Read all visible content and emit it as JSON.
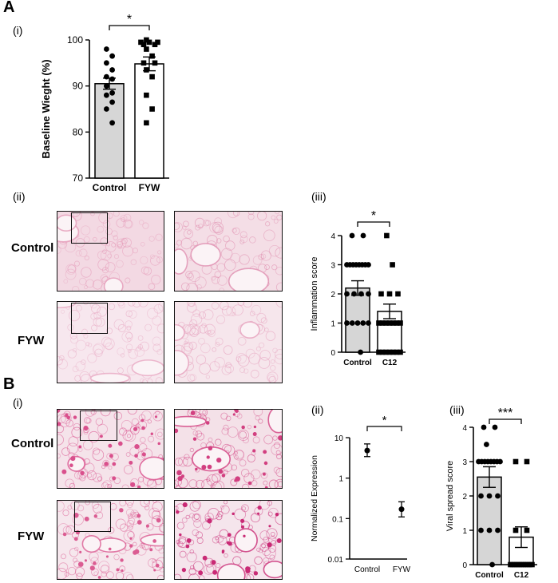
{
  "panels": {
    "A": {
      "letter": "A",
      "i_label": "(i)",
      "ii_label": "(ii)",
      "iii_label": "(iii)",
      "row_labels": [
        "Control",
        "FYW"
      ]
    },
    "B": {
      "letter": "B",
      "i_label": "(i)",
      "ii_label": "(ii)",
      "iii_label": "(iii)",
      "row_labels": [
        "Control",
        "FYW"
      ]
    }
  },
  "chart_data": [
    {
      "id": "A-i",
      "type": "bar",
      "ylabel": "Baseline Wieght (%)",
      "categories": [
        "Control",
        "FYW"
      ],
      "values": [
        90.5,
        94.8
      ],
      "errors": [
        1.2,
        1.5
      ],
      "ylim": [
        70,
        100
      ],
      "yticks": [
        70,
        80,
        90,
        100
      ],
      "significance": "*",
      "points": [
        [
          98,
          96.5,
          95,
          93.5,
          92,
          91.5,
          90,
          88.5,
          88,
          86.5,
          85,
          82
        ],
        [
          100,
          99.5,
          99.5,
          99.5,
          99,
          99,
          98,
          96.5,
          95,
          95,
          93.5,
          92,
          88,
          85,
          82
        ]
      ]
    },
    {
      "id": "A-iii",
      "type": "bar",
      "ylabel": "Inflammation score",
      "categories": [
        "Control",
        "C12"
      ],
      "values": [
        2.2,
        1.4
      ],
      "errors": [
        0.25,
        0.25
      ],
      "ylim": [
        0,
        4
      ],
      "yticks": [
        0,
        1,
        2,
        3,
        4
      ],
      "significance": "*",
      "points": [
        [
          4,
          4,
          3,
          3,
          3,
          3,
          3,
          3,
          3,
          3,
          2,
          2,
          2,
          2,
          1,
          1,
          1,
          1,
          1,
          0
        ],
        [
          4,
          3,
          2,
          2,
          2,
          1,
          1,
          1,
          1,
          1,
          1,
          1,
          0,
          0,
          0,
          0,
          0,
          0,
          0
        ]
      ]
    },
    {
      "id": "B-ii",
      "type": "scatter",
      "ylabel": "Normalized Expression",
      "categories": [
        "Control",
        "FYW"
      ],
      "values": [
        4.8,
        0.17
      ],
      "errors_low": [
        3.4,
        0.11
      ],
      "errors_high": [
        7.0,
        0.26
      ],
      "yscale": "log",
      "ylim": [
        0.01,
        10
      ],
      "yticks": [
        0.01,
        0.1,
        1,
        10
      ],
      "ytick_labels": [
        "0.01",
        "0.1",
        "1",
        "10"
      ],
      "significance": "*"
    },
    {
      "id": "B-iii",
      "type": "bar",
      "ylabel": "Viral spread score",
      "categories": [
        "Control",
        "C12"
      ],
      "values": [
        2.55,
        0.8
      ],
      "errors": [
        0.3,
        0.3
      ],
      "ylim": [
        0,
        4
      ],
      "yticks": [
        0,
        1,
        2,
        3,
        4
      ],
      "significance": "***",
      "points": [
        [
          4,
          4,
          3.5,
          3,
          3,
          3,
          3,
          3,
          3,
          3,
          3,
          2,
          2,
          2,
          1,
          1,
          1,
          0
        ],
        [
          3,
          3,
          1,
          1,
          0,
          0,
          0,
          0,
          0,
          0,
          0,
          0,
          0,
          0,
          0
        ]
      ]
    }
  ],
  "micrographs": [
    {
      "id": "A-control-low",
      "tint": "#f3d9e3",
      "stain": "#e59ab8"
    },
    {
      "id": "A-control-high",
      "tint": "#f4dee6",
      "stain": "#e08fb0"
    },
    {
      "id": "A-fyw-low",
      "tint": "#f7e7ee",
      "stain": "#e8a9c3"
    },
    {
      "id": "A-fyw-high",
      "tint": "#f6e6ec",
      "stain": "#e6a0bd"
    },
    {
      "id": "B-control-low",
      "tint": "#f5e3ea",
      "stain": "#d94f8c"
    },
    {
      "id": "B-control-high",
      "tint": "#f4e1e8",
      "stain": "#d23f80"
    },
    {
      "id": "B-fyw-low",
      "tint": "#f6e7ed",
      "stain": "#db5c92"
    },
    {
      "id": "B-fyw-high",
      "tint": "#f5e5ec",
      "stain": "#c92a75"
    }
  ]
}
